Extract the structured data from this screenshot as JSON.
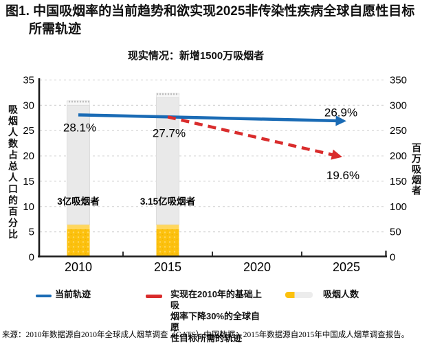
{
  "header": {
    "title_line1": "图1. 中国吸烟率的当前趋势和欲实现2025非传染性疾病全球自愿性目标",
    "title_line2": "所需轨迹"
  },
  "chart_data": {
    "type": "combo",
    "title": "现实情况：新增1500万吸烟者",
    "x_tick_labels": [
      "2010",
      "2015",
      "2020",
      "2025"
    ],
    "left_axis": {
      "label": "吸烟人数占总人口的百分比",
      "range": [
        0,
        35
      ],
      "ticks": [
        0,
        5,
        10,
        15,
        20,
        25,
        30,
        35
      ]
    },
    "right_axis": {
      "label": "百万吸烟者",
      "range": [
        0,
        350
      ],
      "ticks": [
        0,
        50,
        100,
        150,
        200,
        250,
        300,
        350
      ]
    },
    "grid": "dashed-horizontal",
    "series": [
      {
        "name": "当前轨迹",
        "type": "line",
        "style": "solid-arrow",
        "color": "#1a6bb5",
        "points": [
          [
            2010,
            28.1
          ],
          [
            2025,
            26.9
          ]
        ],
        "point_labels": [
          "28.1%",
          "26.9%"
        ]
      },
      {
        "name": "实现在2010年的基础上吸烟率下降30%的全球自愿性目标所需的轨迹",
        "type": "line",
        "style": "dashed-arrow",
        "color": "#d92c2c",
        "points": [
          [
            2015,
            27.7
          ],
          [
            2025,
            19.6
          ]
        ],
        "point_labels": [
          "27.7%",
          "19.6%"
        ]
      },
      {
        "name": "吸烟人数",
        "type": "bar",
        "axis": "right",
        "style": "cigarette",
        "colors": {
          "filter": "#fcc10e",
          "filter_tint": "#ffd75e",
          "body": "#e9e9e9",
          "tip": "#f7f7f7",
          "perforation": "#bfbfbf"
        },
        "bars": [
          {
            "x": 2010,
            "value": 300,
            "label": "3亿吸烟者"
          },
          {
            "x": 2015,
            "value": 315,
            "label": "3.15亿吸烟者"
          }
        ]
      }
    ]
  },
  "legend": {
    "items": [
      {
        "label": "当前轨迹",
        "swatch": "blue-line",
        "color": "#1a6bb5"
      },
      {
        "label": "实现在2010年的基础上吸\n烟率下降30%的全球自愿\n性目标所需的轨迹",
        "swatch": "red-line",
        "color": "#d92c2c"
      },
      {
        "label": "吸烟人数",
        "swatch": "cigarette-bar",
        "color_left": "#fcc10e",
        "color_right": "#ececec"
      }
    ]
  },
  "footer": {
    "source": "来源：2010年数据源自2010年全球成人烟草调查（GATS）中国数据；2015年数据源自2015年中国成人烟草调查报告。"
  }
}
